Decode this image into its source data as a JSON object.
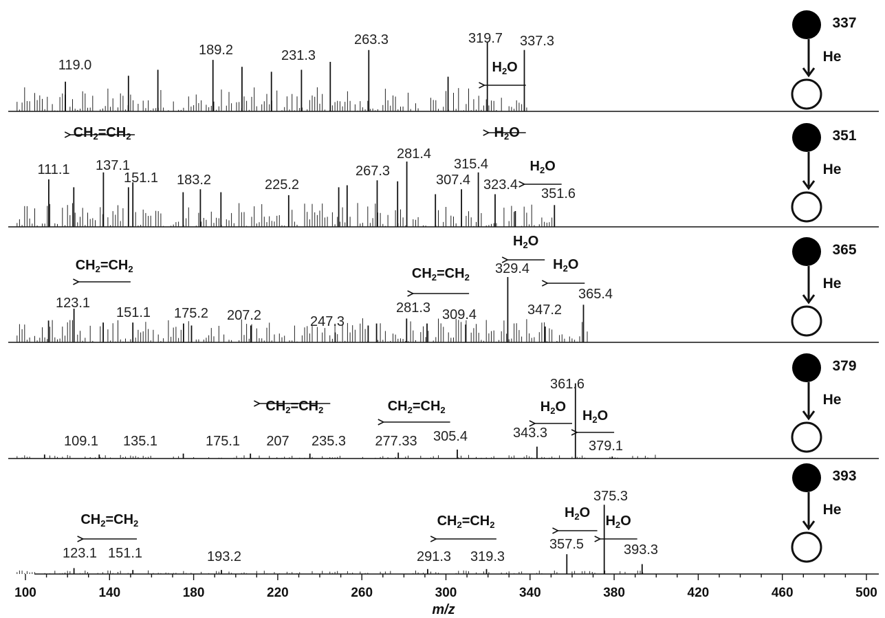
{
  "chart_data": {
    "type": "line",
    "xlabel": "m/z",
    "xlim": [
      100,
      500
    ],
    "ticks": [
      100,
      140,
      180,
      220,
      260,
      300,
      340,
      380,
      420,
      460,
      500
    ],
    "gas_label": "He",
    "water_label": "H₂O",
    "ethylene_label": "CH₂=CH₂",
    "panels": [
      {
        "precursor": "337",
        "peak_labels": [
          "119.0",
          "189.2",
          "231.3",
          "263.3",
          "319.7",
          "337.3"
        ],
        "peaks": [
          {
            "mz": 119.0,
            "rel": 0.3
          },
          {
            "mz": 149.0,
            "rel": 0.36
          },
          {
            "mz": 163.0,
            "rel": 0.42
          },
          {
            "mz": 189.2,
            "rel": 0.52
          },
          {
            "mz": 203.0,
            "rel": 0.45
          },
          {
            "mz": 217.0,
            "rel": 0.4
          },
          {
            "mz": 231.3,
            "rel": 0.42
          },
          {
            "mz": 245.0,
            "rel": 0.5
          },
          {
            "mz": 263.3,
            "rel": 0.62
          },
          {
            "mz": 301.0,
            "rel": 0.35
          },
          {
            "mz": 319.7,
            "rel": 0.7
          },
          {
            "mz": 337.3,
            "rel": 0.62
          }
        ],
        "annotations": [
          {
            "kind": "water",
            "from": 338,
            "to": 318
          }
        ]
      },
      {
        "precursor": "351",
        "peak_labels": [
          "111.1",
          "137.1",
          "151.1",
          "183.2",
          "225.2",
          "267.3",
          "281.4",
          "315.4",
          "307.4",
          "323.4",
          "351.6"
        ],
        "peaks": [
          {
            "mz": 111.1,
            "rel": 0.48
          },
          {
            "mz": 123.0,
            "rel": 0.4
          },
          {
            "mz": 137.1,
            "rel": 0.55
          },
          {
            "mz": 149.0,
            "rel": 0.4
          },
          {
            "mz": 151.1,
            "rel": 0.45
          },
          {
            "mz": 175.0,
            "rel": 0.35
          },
          {
            "mz": 183.2,
            "rel": 0.38
          },
          {
            "mz": 193.0,
            "rel": 0.35
          },
          {
            "mz": 225.2,
            "rel": 0.32
          },
          {
            "mz": 249.0,
            "rel": 0.4
          },
          {
            "mz": 253.0,
            "rel": 0.42
          },
          {
            "mz": 267.3,
            "rel": 0.47
          },
          {
            "mz": 277.0,
            "rel": 0.46
          },
          {
            "mz": 281.4,
            "rel": 0.66
          },
          {
            "mz": 295.0,
            "rel": 0.33
          },
          {
            "mz": 307.4,
            "rel": 0.38
          },
          {
            "mz": 315.4,
            "rel": 0.55
          },
          {
            "mz": 323.4,
            "rel": 0.33
          },
          {
            "mz": 333.0,
            "rel": 0.16
          },
          {
            "mz": 351.6,
            "rel": 0.22
          }
        ],
        "annotations": [
          {
            "kind": "ethylene",
            "from": 152,
            "to": 121
          },
          {
            "kind": "water",
            "from": 338,
            "to": 320
          },
          {
            "kind": "water",
            "from": 355,
            "to": 337
          }
        ]
      },
      {
        "precursor": "365",
        "peak_labels": [
          "123.1",
          "151.1",
          "175.2",
          "207.2",
          "247.3",
          "281.3",
          "309.4",
          "329.4",
          "347.2",
          "365.4"
        ],
        "peaks": [
          {
            "mz": 111.0,
            "rel": 0.22
          },
          {
            "mz": 123.1,
            "rel": 0.34
          },
          {
            "mz": 137.0,
            "rel": 0.2
          },
          {
            "mz": 151.1,
            "rel": 0.2
          },
          {
            "mz": 175.2,
            "rel": 0.19
          },
          {
            "mz": 179.0,
            "rel": 0.17
          },
          {
            "mz": 207.2,
            "rel": 0.17
          },
          {
            "mz": 247.3,
            "rel": 0.1
          },
          {
            "mz": 263.0,
            "rel": 0.17
          },
          {
            "mz": 267.0,
            "rel": 0.19
          },
          {
            "mz": 281.3,
            "rel": 0.24
          },
          {
            "mz": 291.0,
            "rel": 0.19
          },
          {
            "mz": 309.4,
            "rel": 0.18
          },
          {
            "mz": 329.4,
            "rel": 0.66
          },
          {
            "mz": 347.2,
            "rel": 0.16
          },
          {
            "mz": 365.4,
            "rel": 0.38
          }
        ],
        "annotations": [
          {
            "kind": "ethylene",
            "from": 150,
            "to": 125
          },
          {
            "kind": "ethylene",
            "from": 311,
            "to": 284
          },
          {
            "kind": "water",
            "from": 347,
            "to": 329
          },
          {
            "kind": "water",
            "from": 366,
            "to": 348
          }
        ]
      },
      {
        "precursor": "379",
        "peak_labels": [
          "109.1",
          "135.1",
          "175.1",
          "207",
          "235.3",
          "277.33",
          "305.4",
          "343.3",
          "361.6",
          "379.1"
        ],
        "peaks": [
          {
            "mz": 109.1,
            "rel": 0.04
          },
          {
            "mz": 135.1,
            "rel": 0.04
          },
          {
            "mz": 175.1,
            "rel": 0.05
          },
          {
            "mz": 207.0,
            "rel": 0.05
          },
          {
            "mz": 235.3,
            "rel": 0.05
          },
          {
            "mz": 277.33,
            "rel": 0.06
          },
          {
            "mz": 305.4,
            "rel": 0.09
          },
          {
            "mz": 343.3,
            "rel": 0.12
          },
          {
            "mz": 361.6,
            "rel": 0.76
          },
          {
            "mz": 379.1,
            "rel": 0.02
          }
        ],
        "annotations": [
          {
            "kind": "ethylene",
            "from": 245,
            "to": 211
          },
          {
            "kind": "ethylene",
            "from": 302,
            "to": 270
          },
          {
            "kind": "water",
            "from": 360,
            "to": 342
          },
          {
            "kind": "water",
            "from": 380,
            "to": 362
          }
        ]
      },
      {
        "precursor": "393",
        "peak_labels": [
          "123.1",
          "151.1",
          "193.2",
          "291.3",
          "319.3",
          "357.5",
          "375.3",
          "393.3"
        ],
        "peaks": [
          {
            "mz": 123.1,
            "rel": 0.06
          },
          {
            "mz": 151.1,
            "rel": 0.04
          },
          {
            "mz": 193.2,
            "rel": 0.04
          },
          {
            "mz": 291.3,
            "rel": 0.05
          },
          {
            "mz": 319.3,
            "rel": 0.05
          },
          {
            "mz": 357.5,
            "rel": 0.2
          },
          {
            "mz": 375.3,
            "rel": 0.7
          },
          {
            "mz": 393.3,
            "rel": 0.1
          }
        ],
        "annotations": [
          {
            "kind": "ethylene",
            "from": 153,
            "to": 127
          },
          {
            "kind": "ethylene",
            "from": 324,
            "to": 295
          },
          {
            "kind": "water",
            "from": 372,
            "to": 353
          },
          {
            "kind": "water",
            "from": 391,
            "to": 373
          }
        ]
      }
    ]
  }
}
